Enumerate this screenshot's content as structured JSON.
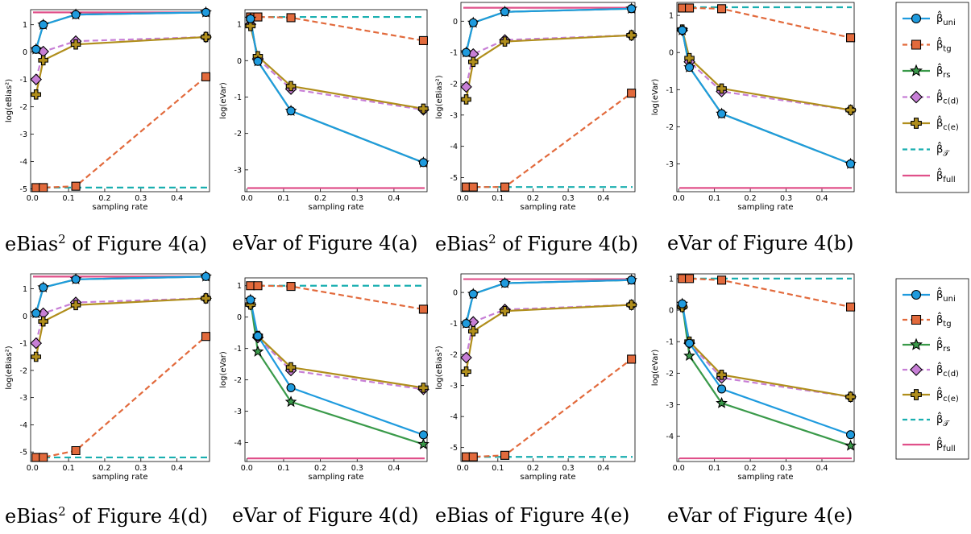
{
  "colors": {
    "uni": "#1f9bde",
    "tg": "#e26a3c",
    "rs": "#3a9a4a",
    "cd": "#c77fd6",
    "ce": "#b08e1c",
    "T": "#1aafb0",
    "full": "#e0508a"
  },
  "legend": [
    {
      "key": "uni",
      "base": "β̂",
      "sub": "uni",
      "marker": "circle",
      "dash": false
    },
    {
      "key": "tg",
      "base": "β̂",
      "sub": "tg",
      "marker": "square",
      "dash": true
    },
    {
      "key": "rs",
      "base": "β̂",
      "sub": "rs",
      "marker": "star",
      "dash": false
    },
    {
      "key": "cd",
      "base": "β̂",
      "sub": "c(d)",
      "marker": "diamond",
      "dash": true
    },
    {
      "key": "ce",
      "base": "β̂",
      "sub": "c(e)",
      "marker": "cross",
      "dash": false
    },
    {
      "key": "T",
      "base": "β̂",
      "sub": "𝒯",
      "marker": "none",
      "dash": true
    },
    {
      "key": "full",
      "base": "β̂",
      "sub": "full",
      "marker": "none",
      "dash": false
    }
  ],
  "captions": [
    {
      "pre": "eBias",
      "sup": "2",
      "post": " of Figure 4(a)"
    },
    {
      "pre": "eVar of Figure 4(a)",
      "sup": "",
      "post": ""
    },
    {
      "pre": "eBias",
      "sup": "2",
      "post": " of Figure 4(b)"
    },
    {
      "pre": "eVar of Figure 4(b)",
      "sup": "",
      "post": ""
    },
    {
      "pre": "eBias",
      "sup": "2",
      "post": " of Figure 4(d)"
    },
    {
      "pre": "eVar of Figure 4(d)",
      "sup": "",
      "post": ""
    },
    {
      "pre": "eBias of Figure 4(e)",
      "sup": "",
      "post": ""
    },
    {
      "pre": "eVar of Figure 4(e)",
      "sup": "",
      "post": ""
    }
  ],
  "chart_data": [
    {
      "type": "line",
      "xlabel": "sampling rate",
      "ylabel": "log(eBias²)",
      "xlim": [
        -0.005,
        0.49
      ],
      "ylim": [
        -5.1,
        1.55
      ],
      "xticks": [
        "0.0",
        "0.1",
        "0.2",
        "0.3",
        "0.4"
      ],
      "xtick_vals": [
        0,
        0.1,
        0.2,
        0.3,
        0.4
      ],
      "yticks": [
        "-5",
        "-4",
        "-3",
        "-2",
        "-1",
        "0",
        "1"
      ],
      "ytick_vals": [
        -5,
        -4,
        -3,
        -2,
        -1,
        0,
        1
      ],
      "x": [
        0.01,
        0.03,
        0.12,
        0.48
      ],
      "series": [
        {
          "key": "tg",
          "values": [
            -4.95,
            -4.95,
            -4.9,
            -0.9
          ]
        },
        {
          "key": "cd",
          "values": [
            -1.0,
            0.02,
            0.4,
            0.55
          ]
        },
        {
          "key": "ce",
          "values": [
            -1.55,
            -0.3,
            0.28,
            0.55
          ]
        },
        {
          "key": "rs",
          "values": [
            0.1,
            1.0,
            1.37,
            1.45
          ]
        },
        {
          "key": "uni",
          "values": [
            0.1,
            1.0,
            1.37,
            1.45
          ]
        }
      ],
      "hlines": [
        {
          "key": "T",
          "value": -4.95
        },
        {
          "key": "full",
          "value": 1.45
        }
      ]
    },
    {
      "type": "line",
      "xlabel": "sampling rate",
      "ylabel": "log(eVar)",
      "xlim": [
        -0.005,
        0.49
      ],
      "ylim": [
        -3.6,
        1.4
      ],
      "xticks": [
        "0.0",
        "0.1",
        "0.2",
        "0.3",
        "0.4"
      ],
      "xtick_vals": [
        0,
        0.1,
        0.2,
        0.3,
        0.4
      ],
      "yticks": [
        "-3",
        "-2",
        "-1",
        "0",
        "1"
      ],
      "ytick_vals": [
        -3,
        -2,
        -1,
        0,
        1
      ],
      "x": [
        0.01,
        0.03,
        0.12,
        0.48
      ],
      "series": [
        {
          "key": "tg",
          "values": [
            1.2,
            1.2,
            1.18,
            0.55
          ]
        },
        {
          "key": "cd",
          "values": [
            1.0,
            0.05,
            -0.78,
            -1.35
          ]
        },
        {
          "key": "ce",
          "values": [
            0.95,
            0.12,
            -0.7,
            -1.32
          ]
        },
        {
          "key": "rs",
          "values": [
            1.15,
            -0.02,
            -1.38,
            -2.8
          ]
        },
        {
          "key": "uni",
          "values": [
            1.15,
            -0.02,
            -1.38,
            -2.8
          ]
        }
      ],
      "hlines": [
        {
          "key": "T",
          "value": 1.2
        },
        {
          "key": "full",
          "value": -3.5
        }
      ]
    },
    {
      "type": "line",
      "xlabel": "sampling rate",
      "ylabel": "log(eBias²)",
      "xlim": [
        -0.005,
        0.49
      ],
      "ylim": [
        -5.45,
        0.6
      ],
      "xticks": [
        "0.0",
        "0.1",
        "0.2",
        "0.3",
        "0.4"
      ],
      "xtick_vals": [
        0,
        0.1,
        0.2,
        0.3,
        0.4
      ],
      "yticks": [
        "-5",
        "-4",
        "-3",
        "-2",
        "-1",
        "0"
      ],
      "ytick_vals": [
        -5,
        -4,
        -3,
        -2,
        -1,
        0
      ],
      "x": [
        0.01,
        0.03,
        0.12,
        0.48
      ],
      "series": [
        {
          "key": "tg",
          "values": [
            -5.3,
            -5.3,
            -5.3,
            -2.3
          ]
        },
        {
          "key": "cd",
          "values": [
            -2.1,
            -1.05,
            -0.6,
            -0.45
          ]
        },
        {
          "key": "ce",
          "values": [
            -2.5,
            -1.3,
            -0.65,
            -0.45
          ]
        },
        {
          "key": "rs",
          "values": [
            -1.0,
            -0.05,
            0.3,
            0.4
          ]
        },
        {
          "key": "uni",
          "values": [
            -1.0,
            -0.05,
            0.3,
            0.4
          ]
        }
      ],
      "hlines": [
        {
          "key": "T",
          "value": -5.3
        },
        {
          "key": "full",
          "value": 0.43
        }
      ]
    },
    {
      "type": "line",
      "xlabel": "sampling rate",
      "ylabel": "log(eVar)",
      "xlim": [
        -0.005,
        0.49
      ],
      "ylim": [
        -3.75,
        1.35
      ],
      "xticks": [
        "0.0",
        "0.1",
        "0.2",
        "0.3",
        "0.4"
      ],
      "xtick_vals": [
        0,
        0.1,
        0.2,
        0.3,
        0.4
      ],
      "yticks": [
        "-3",
        "-2",
        "-1",
        "0",
        "1"
      ],
      "ytick_vals": [
        -3,
        -2,
        -1,
        0,
        1
      ],
      "x": [
        0.01,
        0.03,
        0.12,
        0.48
      ],
      "series": [
        {
          "key": "tg",
          "values": [
            1.2,
            1.2,
            1.18,
            0.4
          ]
        },
        {
          "key": "cd",
          "values": [
            0.6,
            -0.25,
            -1.05,
            -1.55
          ]
        },
        {
          "key": "ce",
          "values": [
            0.62,
            -0.15,
            -0.97,
            -1.55
          ]
        },
        {
          "key": "rs",
          "values": [
            0.6,
            -0.4,
            -1.65,
            -3.0
          ]
        },
        {
          "key": "uni",
          "values": [
            0.6,
            -0.4,
            -1.65,
            -3.0
          ]
        }
      ],
      "hlines": [
        {
          "key": "T",
          "value": 1.22
        },
        {
          "key": "full",
          "value": -3.65
        }
      ]
    },
    {
      "type": "line",
      "xlabel": "sampling rate",
      "ylabel": "log(eBias²)",
      "xlim": [
        -0.005,
        0.49
      ],
      "ylim": [
        -5.35,
        1.55
      ],
      "xticks": [
        "0.0",
        "0.1",
        "0.2",
        "0.3",
        "0.4"
      ],
      "xtick_vals": [
        0,
        0.1,
        0.2,
        0.3,
        0.4
      ],
      "yticks": [
        "-5",
        "-4",
        "-3",
        "-2",
        "-1",
        "0",
        "1"
      ],
      "ytick_vals": [
        -5,
        -4,
        -3,
        -2,
        -1,
        0,
        1
      ],
      "x": [
        0.01,
        0.03,
        0.12,
        0.48
      ],
      "series": [
        {
          "key": "tg",
          "values": [
            -5.2,
            -5.2,
            -4.95,
            -0.75
          ]
        },
        {
          "key": "cd",
          "values": [
            -1.0,
            0.1,
            0.5,
            0.65
          ]
        },
        {
          "key": "ce",
          "values": [
            -1.5,
            -0.2,
            0.4,
            0.65
          ]
        },
        {
          "key": "rs",
          "values": [
            0.1,
            1.05,
            1.35,
            1.45
          ]
        },
        {
          "key": "uni",
          "values": [
            0.1,
            1.05,
            1.35,
            1.45
          ]
        }
      ],
      "hlines": [
        {
          "key": "T",
          "value": -5.2
        },
        {
          "key": "full",
          "value": 1.45
        }
      ]
    },
    {
      "type": "line",
      "xlabel": "sampling rate",
      "ylabel": "log(eVar)",
      "xlim": [
        -0.005,
        0.49
      ],
      "ylim": [
        -4.6,
        1.25
      ],
      "xticks": [
        "0.0",
        "0.1",
        "0.2",
        "0.3",
        "0.4"
      ],
      "xtick_vals": [
        0,
        0.1,
        0.2,
        0.3,
        0.4
      ],
      "yticks": [
        "-4",
        "-3",
        "-2",
        "-1",
        "0",
        "1"
      ],
      "ytick_vals": [
        -4,
        -3,
        -2,
        -1,
        0,
        1
      ],
      "x": [
        0.01,
        0.03,
        0.12,
        0.48
      ],
      "series": [
        {
          "key": "tg",
          "values": [
            1.0,
            1.0,
            0.98,
            0.25
          ]
        },
        {
          "key": "cd",
          "values": [
            0.4,
            -0.65,
            -1.7,
            -2.3
          ]
        },
        {
          "key": "ce",
          "values": [
            0.4,
            -0.6,
            -1.6,
            -2.25
          ]
        },
        {
          "key": "rs",
          "values": [
            0.55,
            -1.1,
            -2.7,
            -4.05
          ]
        },
        {
          "key": "uni",
          "values": [
            0.55,
            -0.6,
            -2.25,
            -3.75
          ]
        }
      ],
      "hlines": [
        {
          "key": "T",
          "value": 1.0
        },
        {
          "key": "full",
          "value": -4.5
        }
      ]
    },
    {
      "type": "line",
      "xlabel": "sampling rate",
      "ylabel": "log(eBias²)",
      "xlim": [
        -0.005,
        0.49
      ],
      "ylim": [
        -5.45,
        0.6
      ],
      "xticks": [
        "0.0",
        "0.1",
        "0.2",
        "0.3",
        "0.4"
      ],
      "xtick_vals": [
        0,
        0.1,
        0.2,
        0.3,
        0.4
      ],
      "yticks": [
        "-5",
        "-4",
        "-3",
        "-2",
        "-1",
        "0"
      ],
      "ytick_vals": [
        -5,
        -4,
        -3,
        -2,
        -1,
        0
      ],
      "x": [
        0.01,
        0.03,
        0.12,
        0.48
      ],
      "series": [
        {
          "key": "tg",
          "values": [
            -5.3,
            -5.3,
            -5.25,
            -2.15
          ]
        },
        {
          "key": "cd",
          "values": [
            -2.1,
            -0.95,
            -0.55,
            -0.4
          ]
        },
        {
          "key": "ce",
          "values": [
            -2.55,
            -1.25,
            -0.6,
            -0.4
          ]
        },
        {
          "key": "rs",
          "values": [
            -1.0,
            -0.05,
            0.3,
            0.4
          ]
        },
        {
          "key": "uni",
          "values": [
            -1.0,
            -0.05,
            0.3,
            0.4
          ]
        }
      ],
      "hlines": [
        {
          "key": "T",
          "value": -5.3
        },
        {
          "key": "full",
          "value": 0.43
        }
      ]
    },
    {
      "type": "line",
      "xlabel": "sampling rate",
      "ylabel": "log(eVar)",
      "xlim": [
        -0.005,
        0.49
      ],
      "ylim": [
        -4.8,
        1.15
      ],
      "xticks": [
        "0.0",
        "0.1",
        "0.2",
        "0.3",
        "0.4"
      ],
      "xtick_vals": [
        0,
        0.1,
        0.2,
        0.3,
        0.4
      ],
      "yticks": [
        "-4",
        "-3",
        "-2",
        "-1",
        "0",
        "1"
      ],
      "ytick_vals": [
        -4,
        -3,
        -2,
        -1,
        0,
        1
      ],
      "x": [
        0.01,
        0.03,
        0.12,
        0.48
      ],
      "series": [
        {
          "key": "tg",
          "values": [
            1.0,
            1.0,
            0.95,
            0.1
          ]
        },
        {
          "key": "cd",
          "values": [
            0.1,
            -1.05,
            -2.15,
            -2.75
          ]
        },
        {
          "key": "ce",
          "values": [
            0.1,
            -1.0,
            -2.05,
            -2.75
          ]
        },
        {
          "key": "rs",
          "values": [
            0.2,
            -1.45,
            -2.95,
            -4.3
          ]
        },
        {
          "key": "uni",
          "values": [
            0.2,
            -1.05,
            -2.5,
            -3.95
          ]
        }
      ],
      "hlines": [
        {
          "key": "T",
          "value": 1.0
        },
        {
          "key": "full",
          "value": -4.7
        }
      ]
    }
  ]
}
